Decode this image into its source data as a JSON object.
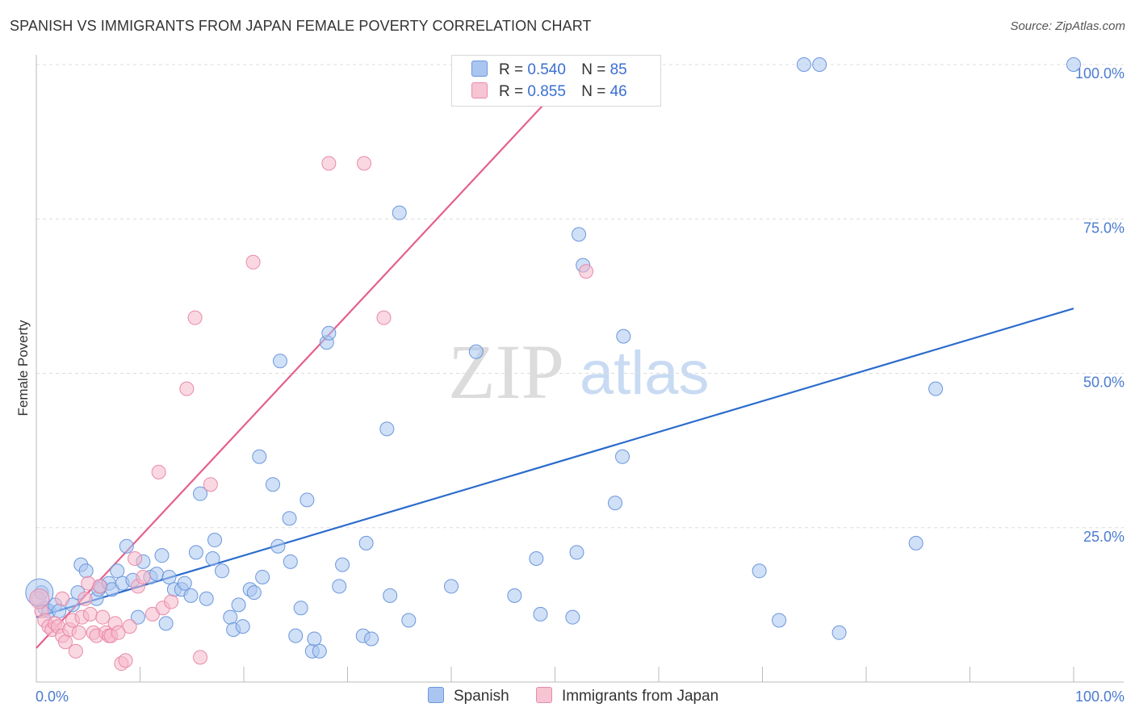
{
  "title": "SPANISH VS IMMIGRANTS FROM JAPAN FEMALE POVERTY CORRELATION CHART",
  "source": "Source: ZipAtlas.com",
  "watermark": {
    "zip": "ZIP",
    "atlas": "atlas"
  },
  "legend": {
    "r_label": "R =",
    "n_label": "N =",
    "rows": [
      {
        "series": "Spanish",
        "r": "0.540",
        "n": "85"
      },
      {
        "series": "Immigrants from Japan",
        "r": "0.855",
        "n": "46"
      }
    ]
  },
  "colors": {
    "spanish_fill": "#aac6f0",
    "spanish_stroke": "#6b97dc",
    "spanish_line": "#2b6ccc",
    "japan_fill": "#f6b8cb",
    "japan_stroke": "#e98aa9",
    "japan_line": "#e5608a",
    "tick_text": "#4a7bd0",
    "grid": "#dcdcdc"
  },
  "chart_data": {
    "type": "scatter",
    "title": "SPANISH VS IMMIGRANTS FROM JAPAN FEMALE POVERTY CORRELATION CHART",
    "xlabel": "",
    "ylabel": "Female Poverty",
    "xlim": [
      0,
      100
    ],
    "ylim": [
      0,
      100
    ],
    "x_tick_labels": [
      "0.0%",
      "100.0%"
    ],
    "y_tick_labels": [
      "100.0%",
      "75.0%",
      "50.0%",
      "25.0%"
    ],
    "y_ticks": [
      100,
      75,
      50,
      25
    ],
    "grid": "horizontal dashed",
    "legend_position": "bottom-center",
    "series": [
      {
        "name": "Spanish",
        "trend": {
          "x": [
            0,
            100
          ],
          "y": [
            10.5,
            60.5
          ]
        },
        "points": [
          [
            0.5,
            14.5
          ],
          [
            0.8,
            12
          ],
          [
            1.2,
            11.5
          ],
          [
            1.8,
            12.5
          ],
          [
            2.2,
            11.5
          ],
          [
            3.5,
            12.5
          ],
          [
            4,
            14.5
          ],
          [
            4.3,
            19
          ],
          [
            4.8,
            18
          ],
          [
            5.8,
            13.5
          ],
          [
            6,
            15
          ],
          [
            6.2,
            15.5
          ],
          [
            7,
            16
          ],
          [
            7.3,
            15
          ],
          [
            7.8,
            18
          ],
          [
            8.3,
            16
          ],
          [
            8.7,
            22
          ],
          [
            9.3,
            16.5
          ],
          [
            9.8,
            10.5
          ],
          [
            10.3,
            19.5
          ],
          [
            11,
            17
          ],
          [
            11.6,
            17.5
          ],
          [
            12.1,
            20.5
          ],
          [
            12.5,
            9.5
          ],
          [
            12.8,
            17
          ],
          [
            13.3,
            15
          ],
          [
            14,
            15
          ],
          [
            14.3,
            16
          ],
          [
            14.9,
            14
          ],
          [
            15.4,
            21
          ],
          [
            15.8,
            30.5
          ],
          [
            16.4,
            13.5
          ],
          [
            17,
            20
          ],
          [
            17.2,
            23
          ],
          [
            17.9,
            18
          ],
          [
            18.7,
            10.5
          ],
          [
            19,
            8.5
          ],
          [
            19.5,
            12.5
          ],
          [
            19.9,
            9
          ],
          [
            20.6,
            15
          ],
          [
            21,
            14.5
          ],
          [
            21.8,
            17
          ],
          [
            21.5,
            36.5
          ],
          [
            22.8,
            32
          ],
          [
            23.3,
            22
          ],
          [
            23.5,
            52
          ],
          [
            24.4,
            26.5
          ],
          [
            24.5,
            19.5
          ],
          [
            25,
            7.5
          ],
          [
            25.5,
            12
          ],
          [
            26.1,
            29.5
          ],
          [
            26.6,
            5
          ],
          [
            26.8,
            7
          ],
          [
            27.3,
            5
          ],
          [
            28,
            55
          ],
          [
            28.2,
            56.5
          ],
          [
            29.2,
            15.5
          ],
          [
            29.5,
            19
          ],
          [
            31.5,
            7.5
          ],
          [
            31.8,
            22.5
          ],
          [
            32.3,
            7
          ],
          [
            33.8,
            41
          ],
          [
            34.1,
            14
          ],
          [
            35,
            76
          ],
          [
            35.9,
            10
          ],
          [
            40,
            15.5
          ],
          [
            42.4,
            53.5
          ],
          [
            46.1,
            14
          ],
          [
            48.2,
            20
          ],
          [
            48.6,
            11
          ],
          [
            52.1,
            21
          ],
          [
            52.3,
            72.5
          ],
          [
            52.7,
            67.5
          ],
          [
            51.7,
            10.5
          ],
          [
            55.8,
            29
          ],
          [
            56.5,
            36.5
          ],
          [
            56.6,
            56
          ],
          [
            69.7,
            18
          ],
          [
            71.6,
            10
          ],
          [
            77.4,
            8
          ],
          [
            74,
            100
          ],
          [
            75.5,
            100
          ],
          [
            84.8,
            22.5
          ],
          [
            86.7,
            47.5
          ],
          [
            100,
            100
          ]
        ]
      },
      {
        "name": "Immigrants from Japan",
        "trend": {
          "x": [
            0,
            50
          ],
          "y": [
            5.5,
            95.5
          ]
        },
        "points": [
          [
            0.2,
            13.5
          ],
          [
            0.5,
            11.5
          ],
          [
            0.8,
            10
          ],
          [
            1.2,
            9
          ],
          [
            1.5,
            8.5
          ],
          [
            1.8,
            9.5
          ],
          [
            2.1,
            9
          ],
          [
            2.5,
            7.5
          ],
          [
            2.8,
            6.5
          ],
          [
            3.2,
            8.5
          ],
          [
            3.5,
            10
          ],
          [
            3.8,
            5
          ],
          [
            4.1,
            8
          ],
          [
            4.4,
            10.5
          ],
          [
            4.7,
            13.5
          ],
          [
            5,
            16
          ],
          [
            5.2,
            11
          ],
          [
            5.5,
            8
          ],
          [
            5.8,
            7.5
          ],
          [
            6.1,
            15.5
          ],
          [
            6.4,
            10.5
          ],
          [
            6.7,
            8
          ],
          [
            7,
            7.5
          ],
          [
            7.2,
            7.5
          ],
          [
            7.6,
            9.5
          ],
          [
            7.9,
            8
          ],
          [
            8.2,
            3
          ],
          [
            8.6,
            3.5
          ],
          [
            9,
            9
          ],
          [
            9.5,
            20
          ],
          [
            9.8,
            15.5
          ],
          [
            10.3,
            17
          ],
          [
            11.2,
            11
          ],
          [
            11.8,
            34
          ],
          [
            12.2,
            12
          ],
          [
            13,
            13
          ],
          [
            14.5,
            47.5
          ],
          [
            15.3,
            59
          ],
          [
            15.8,
            4
          ],
          [
            16.8,
            32
          ],
          [
            20.9,
            68
          ],
          [
            28.2,
            84
          ],
          [
            31.6,
            84
          ],
          [
            33.5,
            59
          ],
          [
            53,
            66.5
          ],
          [
            2.5,
            13.5
          ]
        ]
      }
    ]
  }
}
